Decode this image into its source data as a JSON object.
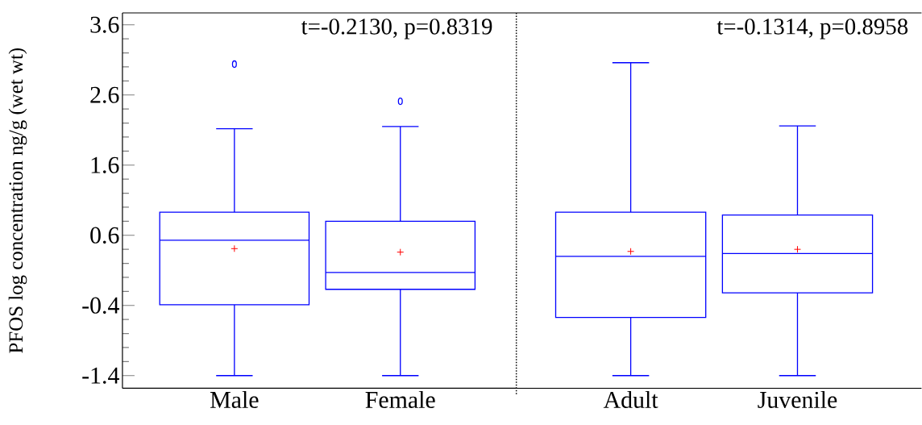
{
  "chart_data": [
    {
      "type": "box",
      "categories": [
        "Male",
        "Female"
      ],
      "ylabel": "PFOS log concentration ng/g (wet wt)",
      "color": "#0000ff",
      "boxes": [
        {
          "low": -1.4,
          "q1": -0.39,
          "median": 0.53,
          "q3": 0.93,
          "high": 2.12,
          "mean": 0.41,
          "outliers": [
            3.04
          ]
        },
        {
          "low": -1.4,
          "q1": -0.17,
          "median": 0.07,
          "q3": 0.8,
          "high": 2.15,
          "mean": 0.36,
          "outliers": [
            2.51
          ]
        }
      ],
      "ylim": [
        -1.58,
        3.77
      ],
      "yticks": [
        -1.4,
        -0.4,
        0.6,
        1.6,
        2.6,
        3.6
      ],
      "grid": false,
      "annotations": [
        "t=-0.2130, p=0.8319"
      ]
    },
    {
      "type": "box",
      "categories": [
        "Adult",
        "Juvenile"
      ],
      "color": "#0000ff",
      "boxes": [
        {
          "low": -1.4,
          "q1": -0.57,
          "median": 0.3,
          "q3": 0.93,
          "high": 3.06,
          "mean": 0.37
        },
        {
          "low": -1.4,
          "q1": -0.22,
          "median": 0.34,
          "q3": 0.89,
          "high": 2.16,
          "mean": 0.4
        }
      ],
      "ylim": [
        -1.58,
        3.77
      ],
      "tick_labels": "x",
      "grid": false,
      "annotations": [
        "t=-0.1314, p=0.8958"
      ]
    }
  ]
}
